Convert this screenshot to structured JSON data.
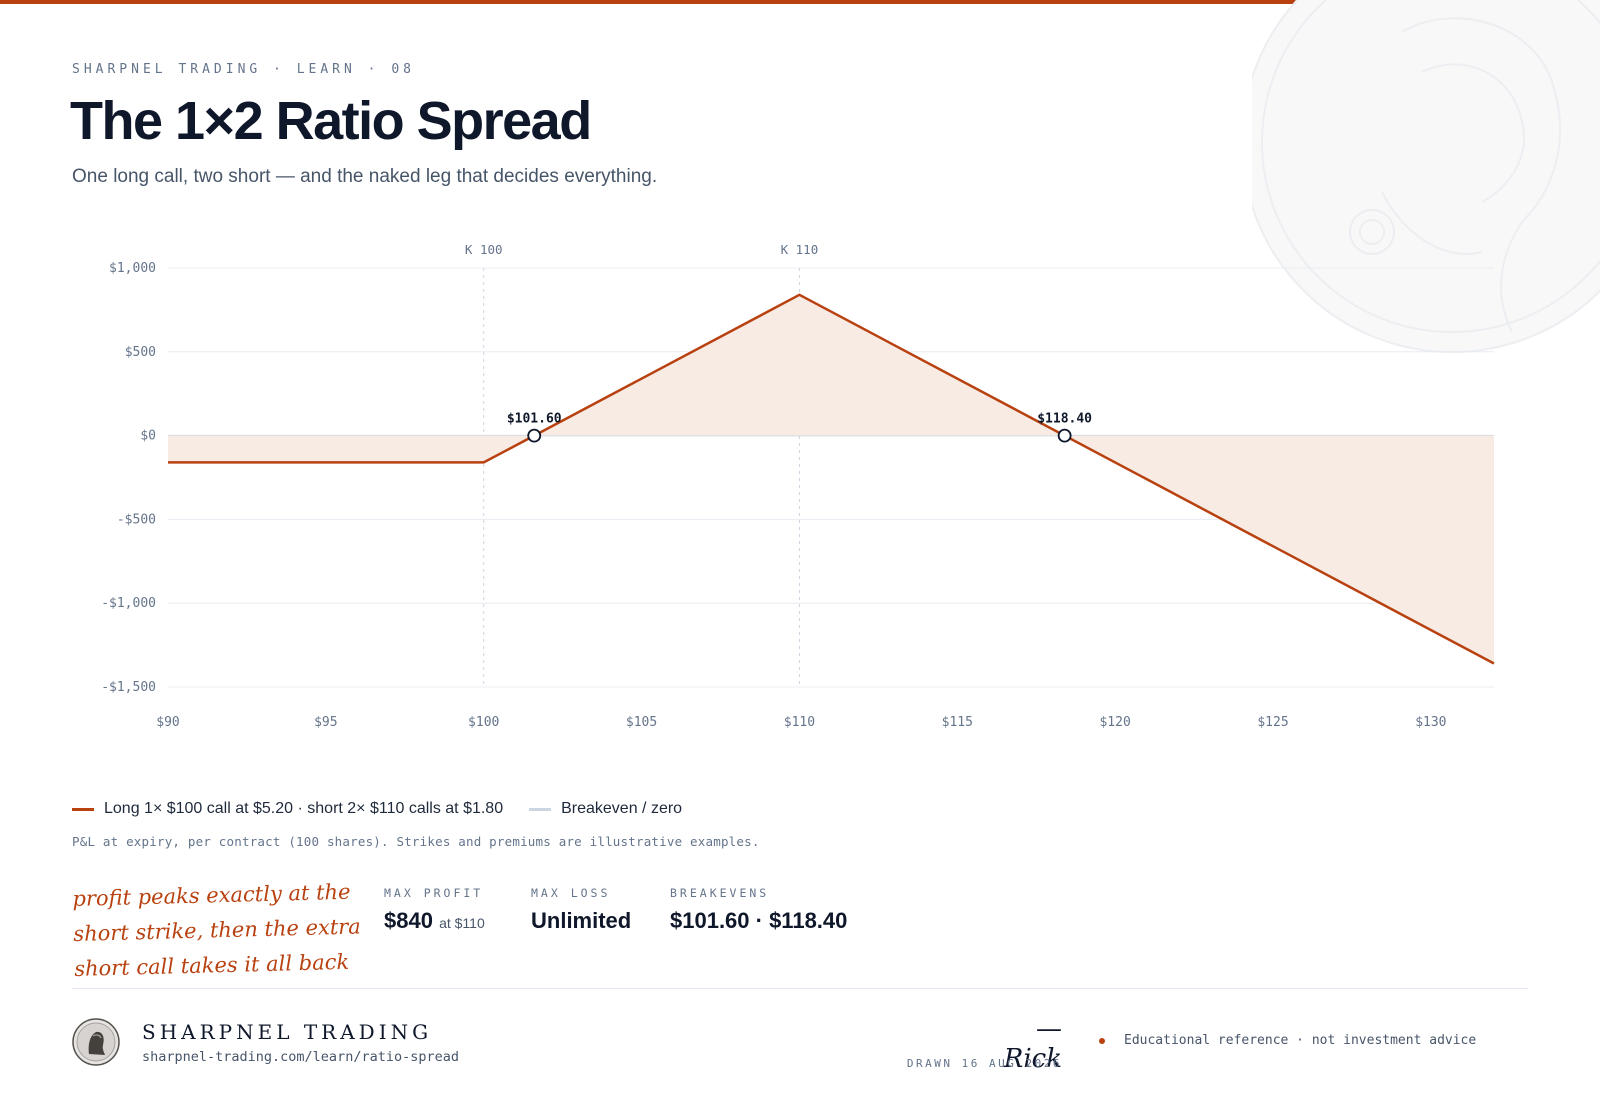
{
  "header": {
    "eyebrow": "SHARPNEL TRADING · LEARN · 08",
    "title": "The 1×2 Ratio Spread",
    "subtitle": "One long call, two short — and the naked leg that decides everything."
  },
  "colors": {
    "accent": "#b8410f",
    "fill": "#f7ebe4",
    "zero_line": "#cbd5e1",
    "grid": "#e8ecf1",
    "text_muted": "#64748b"
  },
  "chart_data": {
    "type": "line",
    "x": [
      90,
      100,
      110,
      132
    ],
    "series": [
      {
        "name": "Long 1× $100 call at $5.20 · short 2× $110 calls at $1.80",
        "values": [
          -160,
          -160,
          840,
          -1360
        ]
      }
    ],
    "xlim": [
      90,
      132
    ],
    "ylim": [
      -1500,
      1000
    ],
    "x_ticks": [
      90,
      95,
      100,
      105,
      110,
      115,
      120,
      125,
      130
    ],
    "x_tick_labels": [
      "$90",
      "$95",
      "$100",
      "$105",
      "$110",
      "$115",
      "$120",
      "$125",
      "$130"
    ],
    "y_ticks": [
      1000,
      500,
      0,
      -500,
      -1000,
      -1500
    ],
    "y_tick_labels": [
      "$1,000",
      "$500",
      "$0",
      "-$500",
      "-$1,000",
      "-$1,500"
    ],
    "strike_lines": [
      {
        "x": 100,
        "label": "K 100"
      },
      {
        "x": 110,
        "label": "K 110"
      }
    ],
    "breakevens": [
      {
        "x": 101.6,
        "label": "$101.60"
      },
      {
        "x": 118.4,
        "label": "$118.40"
      }
    ],
    "grid": true,
    "shaded_area_to_zero": true,
    "legend": [
      {
        "label": "Long 1× $100 call at $5.20 · short 2× $110 calls at $1.80",
        "color": "#b8410f"
      },
      {
        "label": "Breakeven / zero",
        "color": "#cbd5e1"
      }
    ],
    "footnote": "P&L at expiry, per contract (100 shares). Strikes and premiums are illustrative examples."
  },
  "annotation": "profit peaks exactly at the short strike, then the extra short call takes it all back",
  "stats": {
    "max_profit": {
      "label": "MAX PROFIT",
      "value": "$840",
      "note": "at $110"
    },
    "max_loss": {
      "label": "MAX LOSS",
      "value": "Unlimited"
    },
    "breakevens": {
      "label": "BREAKEVENS",
      "value": "$101.60 · $118.40"
    }
  },
  "footer": {
    "brand": "SHARPNEL TRADING",
    "url": "sharpnel-trading.com/learn/ratio-spread",
    "signature": "— Rick",
    "drawn": "DRAWN 16 AUG 2026",
    "disclaimer": "Educational reference · not investment advice"
  }
}
